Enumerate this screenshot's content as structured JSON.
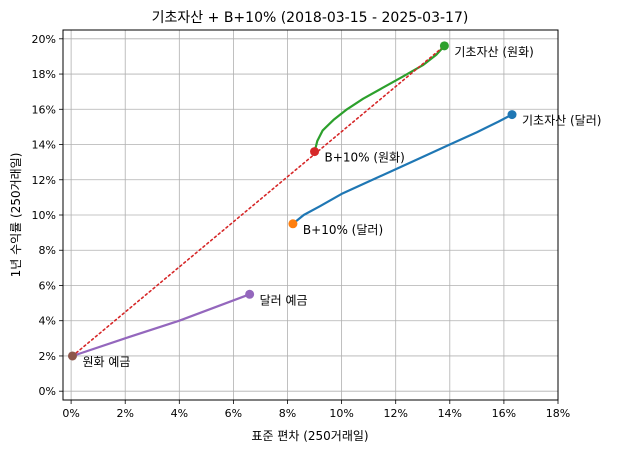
{
  "chart_data": {
    "type": "scatter",
    "title": "기초자산 + B+10% (2018-03-15 - 2025-03-17)",
    "xlabel": "표준 편차 (250거래일)",
    "ylabel": "1년 수익률 (250거래일)",
    "xlim": [
      -0.003,
      0.18
    ],
    "ylim": [
      -0.005,
      0.205
    ],
    "x_ticks": [
      0,
      0.02,
      0.04,
      0.06,
      0.08,
      0.1,
      0.12,
      0.14,
      0.16,
      0.18
    ],
    "x_tick_labels": [
      "0%",
      "2%",
      "4%",
      "6%",
      "8%",
      "10%",
      "12%",
      "14%",
      "16%",
      "18%"
    ],
    "y_ticks": [
      0,
      0.02,
      0.04,
      0.06,
      0.08,
      0.1,
      0.12,
      0.14,
      0.16,
      0.18,
      0.2
    ],
    "y_tick_labels": [
      "0%",
      "2%",
      "4%",
      "6%",
      "8%",
      "10%",
      "12%",
      "14%",
      "16%",
      "18%",
      "20%"
    ],
    "grid": true,
    "series": [
      {
        "color": "#1f77b4",
        "points": [
          {
            "x": 0.082,
            "y": 0.095
          },
          {
            "x": 0.086,
            "y": 0.1
          },
          {
            "x": 0.092,
            "y": 0.105
          },
          {
            "x": 0.1,
            "y": 0.112
          },
          {
            "x": 0.11,
            "y": 0.119
          },
          {
            "x": 0.12,
            "y": 0.126
          },
          {
            "x": 0.13,
            "y": 0.133
          },
          {
            "x": 0.14,
            "y": 0.14
          },
          {
            "x": 0.15,
            "y": 0.147
          },
          {
            "x": 0.158,
            "y": 0.153
          },
          {
            "x": 0.163,
            "y": 0.157
          }
        ]
      },
      {
        "color": "#2ca02c",
        "points": [
          {
            "x": 0.09,
            "y": 0.136
          },
          {
            "x": 0.091,
            "y": 0.142
          },
          {
            "x": 0.093,
            "y": 0.148
          },
          {
            "x": 0.097,
            "y": 0.154
          },
          {
            "x": 0.102,
            "y": 0.16
          },
          {
            "x": 0.108,
            "y": 0.166
          },
          {
            "x": 0.115,
            "y": 0.172
          },
          {
            "x": 0.122,
            "y": 0.178
          },
          {
            "x": 0.13,
            "y": 0.185
          },
          {
            "x": 0.135,
            "y": 0.191
          },
          {
            "x": 0.138,
            "y": 0.196
          }
        ]
      },
      {
        "color": "#9467bd",
        "points": [
          {
            "x": 0.0005,
            "y": 0.02
          },
          {
            "x": 0.02,
            "y": 0.03
          },
          {
            "x": 0.04,
            "y": 0.04
          },
          {
            "x": 0.066,
            "y": 0.055
          }
        ]
      },
      {
        "color": "#d62728",
        "dashed": true,
        "points": [
          {
            "x": 0.0005,
            "y": 0.02
          },
          {
            "x": 0.138,
            "y": 0.196
          }
        ]
      }
    ],
    "markers": [
      {
        "label": "기초자산 (원화)",
        "x": 0.138,
        "y": 0.196,
        "color": "#2ca02c"
      },
      {
        "label": "기초자산 (달러)",
        "x": 0.163,
        "y": 0.157,
        "color": "#1f77b4"
      },
      {
        "label": "B+10% (원화)",
        "x": 0.09,
        "y": 0.136,
        "color": "#d62728"
      },
      {
        "label": "B+10% (달러)",
        "x": 0.082,
        "y": 0.095,
        "color": "#ff7f0e"
      },
      {
        "label": "달러 예금",
        "x": 0.066,
        "y": 0.055,
        "color": "#9467bd"
      },
      {
        "label": "원화 예금",
        "x": 0.0005,
        "y": 0.02,
        "color": "#8c564b"
      }
    ]
  }
}
